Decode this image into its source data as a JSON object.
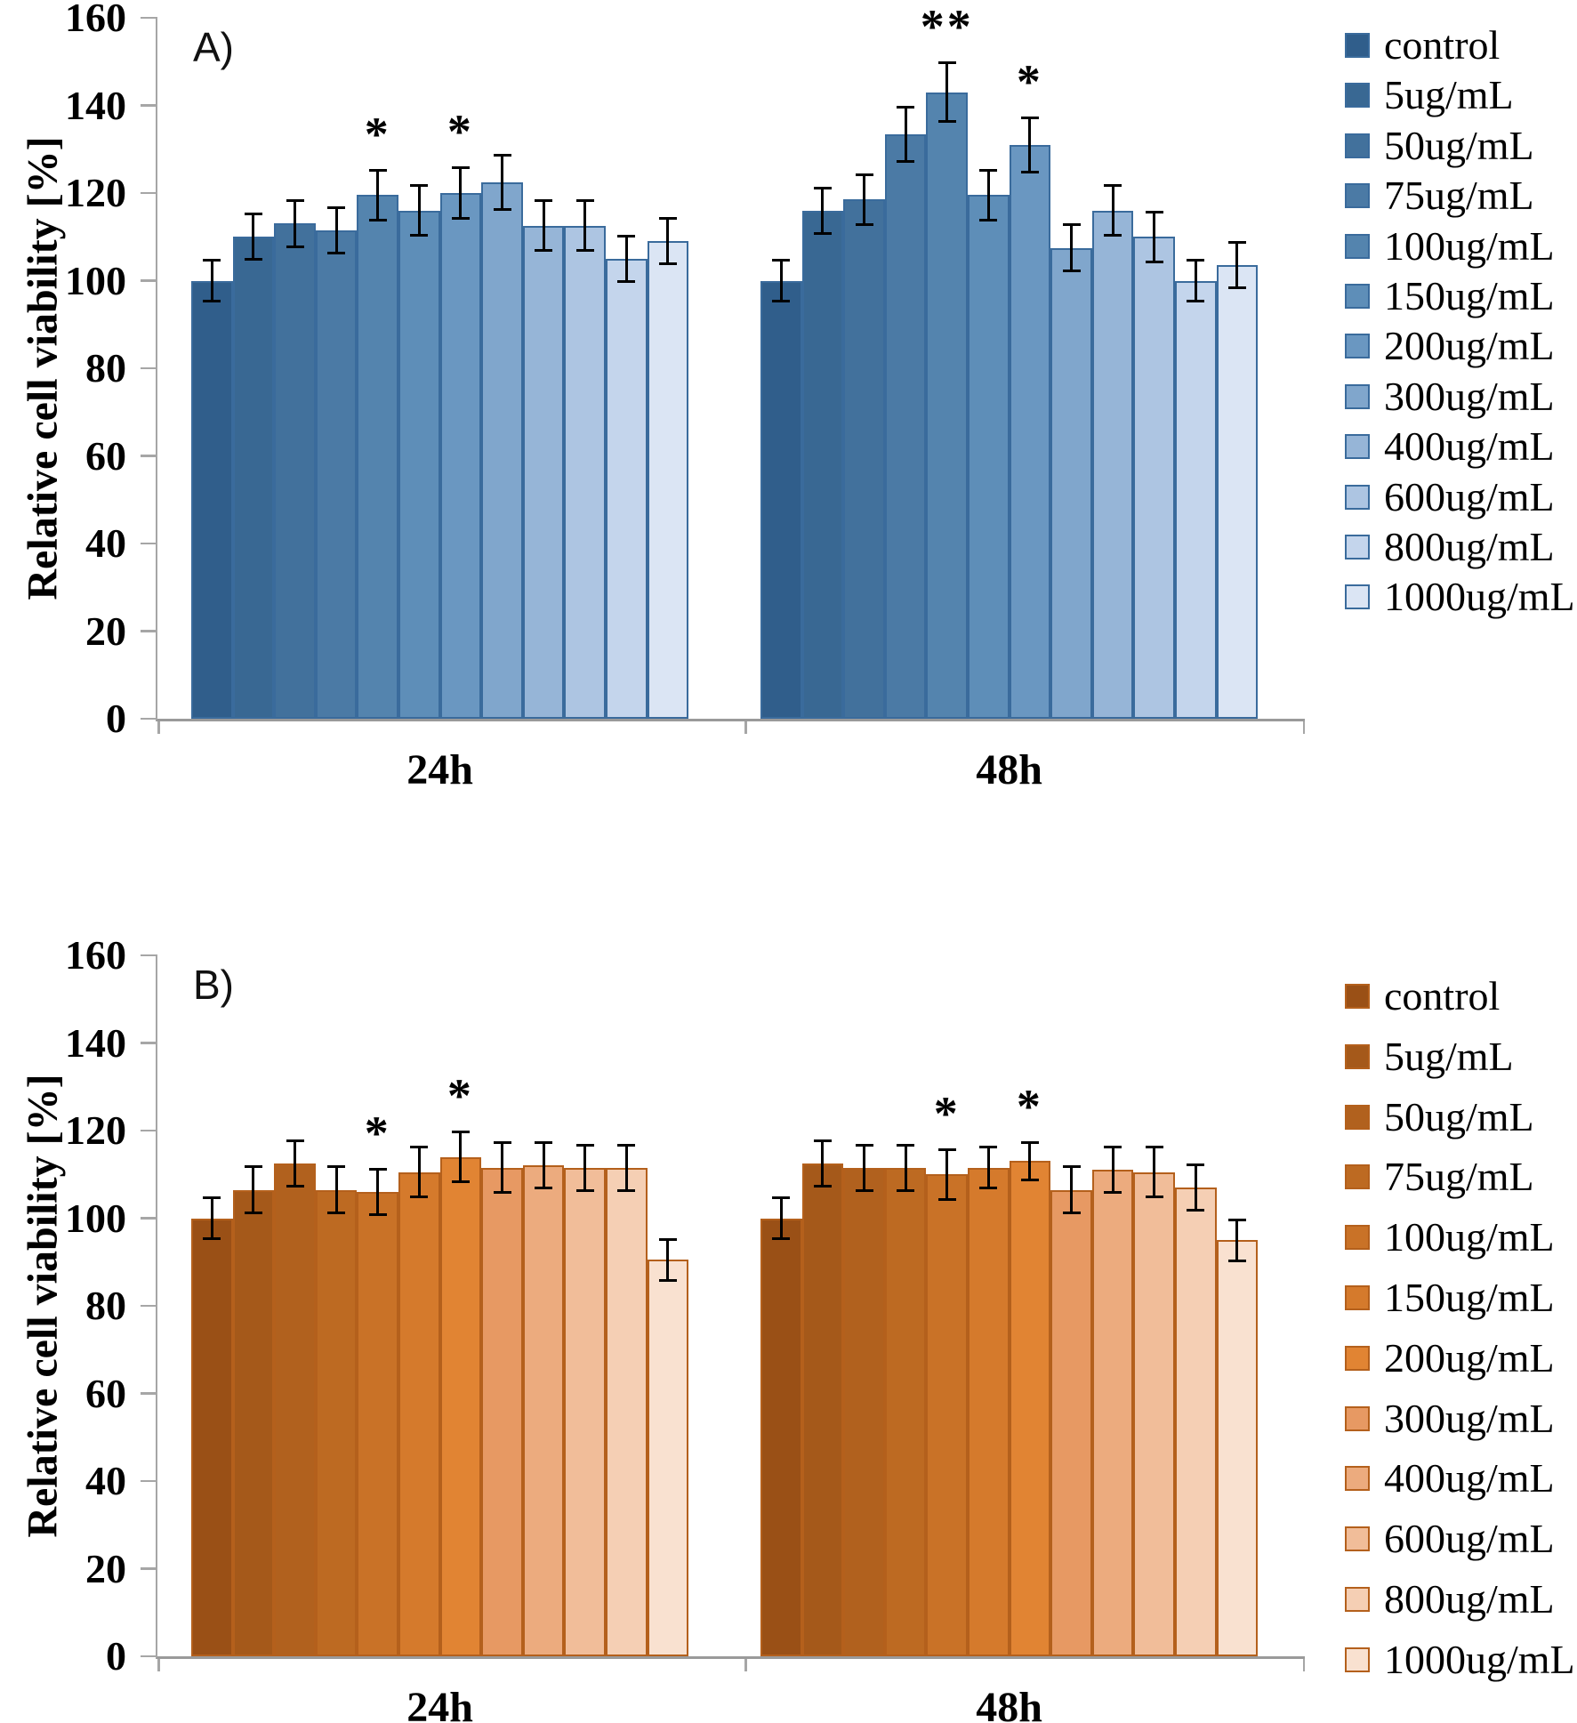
{
  "figure_title": "",
  "axis_color": "#a6a6a6",
  "error_bar_color": "#000000",
  "chart_data": [
    {
      "type": "bar",
      "panel_label": "A)",
      "ylabel": "Relative cell viability [%]",
      "ylim": [
        0,
        160
      ],
      "yticks": [
        160,
        140,
        120,
        100,
        80,
        60,
        40,
        20,
        0
      ],
      "categories": [
        "24h",
        "48h"
      ],
      "legend_position": "right",
      "grid": false,
      "bar_border_color": "#3a6b9c",
      "series": [
        {
          "name": "control",
          "color": "#305e8b",
          "values": [
            100,
            100
          ],
          "errors": [
            5,
            5
          ],
          "sig": [
            "",
            ""
          ]
        },
        {
          "name": "5ug/mL",
          "color": "#396893",
          "values": [
            110,
            116
          ],
          "errors": [
            5.5,
            5.5
          ],
          "sig": [
            "",
            ""
          ]
        },
        {
          "name": "50ug/mL",
          "color": "#42719c",
          "values": [
            113,
            118.5
          ],
          "errors": [
            5.5,
            6
          ],
          "sig": [
            "",
            ""
          ]
        },
        {
          "name": "75ug/mL",
          "color": "#4b7aa5",
          "values": [
            111.5,
            133.5
          ],
          "errors": [
            5.5,
            6.5
          ],
          "sig": [
            "",
            ""
          ]
        },
        {
          "name": "100ug/mL",
          "color": "#5484ae",
          "values": [
            119.5,
            143
          ],
          "errors": [
            6,
            7
          ],
          "sig": [
            "*",
            "**"
          ]
        },
        {
          "name": "150ug/mL",
          "color": "#5e8eb8",
          "values": [
            116,
            119.5
          ],
          "errors": [
            6,
            6
          ],
          "sig": [
            "",
            ""
          ]
        },
        {
          "name": "200ug/mL",
          "color": "#6a97c1",
          "values": [
            120,
            131
          ],
          "errors": [
            6,
            6.5
          ],
          "sig": [
            "*",
            "*"
          ]
        },
        {
          "name": "300ug/mL",
          "color": "#80a6cc",
          "values": [
            122.5,
            107.5
          ],
          "errors": [
            6.5,
            5.5
          ],
          "sig": [
            "",
            ""
          ]
        },
        {
          "name": "400ug/mL",
          "color": "#96b5d7",
          "values": [
            112.5,
            116
          ],
          "errors": [
            6,
            6
          ],
          "sig": [
            "",
            ""
          ]
        },
        {
          "name": "600ug/mL",
          "color": "#adc5e2",
          "values": [
            112.5,
            110
          ],
          "errors": [
            6,
            6
          ],
          "sig": [
            "",
            ""
          ]
        },
        {
          "name": "800ug/mL",
          "color": "#c4d5ec",
          "values": [
            105,
            100
          ],
          "errors": [
            5.5,
            5
          ],
          "sig": [
            "",
            ""
          ]
        },
        {
          "name": "1000ug/mL",
          "color": "#dbe5f4",
          "values": [
            109,
            103.5
          ],
          "errors": [
            5.5,
            5.5
          ],
          "sig": [
            "",
            ""
          ]
        }
      ]
    },
    {
      "type": "bar",
      "panel_label": "B)",
      "ylabel": "Relative cell viability [%]",
      "ylim": [
        0,
        160
      ],
      "yticks": [
        160,
        140,
        120,
        100,
        80,
        60,
        40,
        20,
        0
      ],
      "categories": [
        "24h",
        "48h"
      ],
      "legend_position": "right",
      "grid": false,
      "bar_border_color": "#b4601c",
      "series": [
        {
          "name": "control",
          "color": "#9a5016",
          "values": [
            100,
            100
          ],
          "errors": [
            5,
            5
          ],
          "sig": [
            "",
            ""
          ]
        },
        {
          "name": "5ug/mL",
          "color": "#a5591a",
          "values": [
            106.5,
            112.5
          ],
          "errors": [
            5.5,
            5.5
          ],
          "sig": [
            "",
            ""
          ]
        },
        {
          "name": "50ug/mL",
          "color": "#b1611e",
          "values": [
            112.5,
            111.5
          ],
          "errors": [
            5.5,
            5.5
          ],
          "sig": [
            "",
            ""
          ]
        },
        {
          "name": "75ug/mL",
          "color": "#bd6a22",
          "values": [
            106.5,
            111.5
          ],
          "errors": [
            5.5,
            5.5
          ],
          "sig": [
            "",
            ""
          ]
        },
        {
          "name": "100ug/mL",
          "color": "#c97227",
          "values": [
            106,
            110
          ],
          "errors": [
            5.5,
            6
          ],
          "sig": [
            "*",
            "*"
          ]
        },
        {
          "name": "150ug/mL",
          "color": "#d57a2c",
          "values": [
            110.5,
            111.5
          ],
          "errors": [
            6,
            5
          ],
          "sig": [
            "",
            ""
          ]
        },
        {
          "name": "200ug/mL",
          "color": "#e18433",
          "values": [
            114,
            113
          ],
          "errors": [
            6,
            4.5
          ],
          "sig": [
            "*",
            "*"
          ]
        },
        {
          "name": "300ug/mL",
          "color": "#e79963",
          "values": [
            111.5,
            106.5
          ],
          "errors": [
            6,
            5.5
          ],
          "sig": [
            "",
            ""
          ]
        },
        {
          "name": "400ug/mL",
          "color": "#ecab7e",
          "values": [
            112,
            111
          ],
          "errors": [
            5.5,
            5.5
          ],
          "sig": [
            "",
            ""
          ]
        },
        {
          "name": "600ug/mL",
          "color": "#f1bd99",
          "values": [
            111.5,
            110.5
          ],
          "errors": [
            5.5,
            6
          ],
          "sig": [
            "",
            ""
          ]
        },
        {
          "name": "800ug/mL",
          "color": "#f5cfb4",
          "values": [
            111.5,
            107
          ],
          "errors": [
            5.5,
            5.5
          ],
          "sig": [
            "",
            ""
          ]
        },
        {
          "name": "1000ug/mL",
          "color": "#f9e1d0",
          "values": [
            90.5,
            95
          ],
          "errors": [
            5,
            5
          ],
          "sig": [
            "",
            ""
          ]
        }
      ]
    }
  ]
}
